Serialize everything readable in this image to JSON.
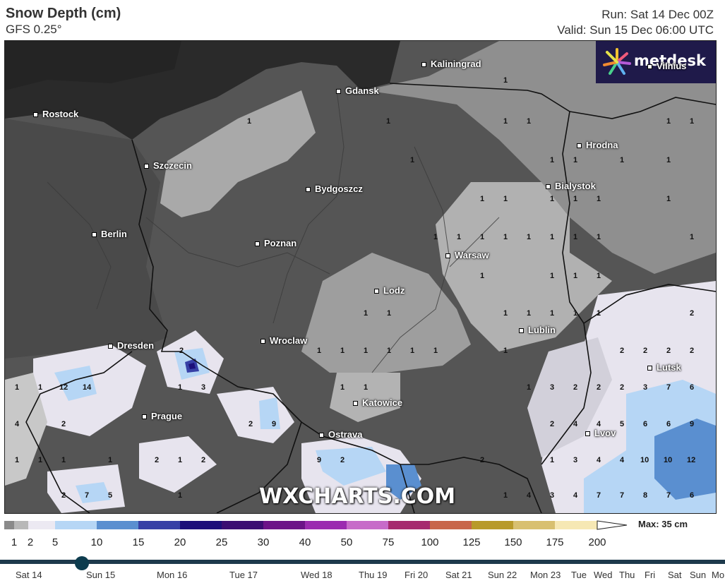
{
  "header": {
    "title": "Snow Depth (cm)",
    "model": "GFS 0.25°",
    "run": "Run: Sat 14 Dec 00Z",
    "valid": "Valid: Sun 15 Dec 06:00 UTC"
  },
  "logo": {
    "text": "metdesk"
  },
  "watermark": "WXCHARTS.COM",
  "cities": [
    {
      "name": "Kaliningrad"
    },
    {
      "name": "Vilnius"
    },
    {
      "name": "Gdansk"
    },
    {
      "name": "Rostock"
    },
    {
      "name": "Hrodna"
    },
    {
      "name": "Szczecin"
    },
    {
      "name": "Bydgoszcz"
    },
    {
      "name": "Bialystok"
    },
    {
      "name": "Berlin"
    },
    {
      "name": "Poznan"
    },
    {
      "name": "Warsaw"
    },
    {
      "name": "Lodz"
    },
    {
      "name": "Lublin"
    },
    {
      "name": "Wroclaw"
    },
    {
      "name": "Dresden"
    },
    {
      "name": "Lutsk"
    },
    {
      "name": "Katowice"
    },
    {
      "name": "Prague"
    },
    {
      "name": "Ostrava"
    },
    {
      "name": "Lvov"
    }
  ],
  "legend": {
    "labels": [
      "1",
      "2",
      "5",
      "10",
      "15",
      "20",
      "25",
      "30",
      "40",
      "50",
      "75",
      "100",
      "125",
      "150",
      "175",
      "200"
    ],
    "colors": [
      "#8a8a8a",
      "#b8b8b8",
      "#ece9f2",
      "#b6d6f5",
      "#5a8fd0",
      "#3740a6",
      "#1c0f7a",
      "#3b0e72",
      "#6c1388",
      "#9b2ab0",
      "#c76bc9",
      "#a62a6f",
      "#c8664a",
      "#b89a2a",
      "#d8c070",
      "#f6e8b4"
    ],
    "max": "Max: 35 cm"
  },
  "timeline": {
    "days": [
      "Sat 14",
      "Sun 15",
      "Mon 16",
      "Tue 17",
      "Wed 18",
      "Thu 19",
      "Fri 20",
      "Sat 21",
      "Sun 22",
      "Mon 23",
      "Tue",
      "Wed",
      "Thu",
      "Fri",
      "Sat",
      "Sun",
      "Mo"
    ]
  }
}
